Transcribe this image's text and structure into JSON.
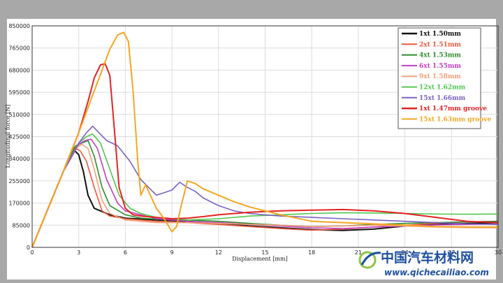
{
  "chart_data": {
    "type": "line",
    "title": "",
    "xlabel": "Displacement [mm]",
    "ylabel": "Longitudinal force [N]",
    "xlim": [
      0,
      30
    ],
    "ylim": [
      0,
      850000
    ],
    "x_ticks": [
      "0",
      "3",
      "6",
      "9",
      "12",
      "15",
      "18",
      "21",
      "24",
      "27",
      "30"
    ],
    "y_ticks": [
      "0",
      "85000",
      "170000",
      "255000",
      "340000",
      "425000",
      "510000",
      "595000",
      "680000",
      "765000",
      "850000"
    ],
    "grid": true,
    "legend_position": "top-right",
    "series": [
      {
        "name": "1xt  1.50mm",
        "color": "#111111",
        "x": [
          0,
          1,
          2,
          2.6,
          3,
          3.3,
          3.6,
          4,
          5,
          6,
          8,
          10,
          12,
          14,
          16,
          18,
          20,
          22,
          24,
          26,
          28,
          30
        ],
        "y": [
          0,
          145000,
          290000,
          380000,
          355000,
          290000,
          200000,
          150000,
          125000,
          112000,
          105000,
          100000,
          92000,
          82000,
          75000,
          68000,
          65000,
          70000,
          82000,
          88000,
          92000,
          95000
        ]
      },
      {
        "name": "2xt  1.51mm",
        "color": "#e8583a",
        "x": [
          0,
          1,
          2,
          2.7,
          3.1,
          3.5,
          4,
          4.5,
          5,
          6,
          8,
          10,
          12,
          14,
          16,
          18,
          20,
          22,
          24,
          26,
          28,
          30
        ],
        "y": [
          0,
          145000,
          290000,
          385000,
          370000,
          330000,
          230000,
          140000,
          120000,
          110000,
          100000,
          95000,
          88000,
          80000,
          72000,
          66000,
          70000,
          78000,
          85000,
          92000,
          98000,
          100000
        ]
      },
      {
        "name": "4xt  1.53mm",
        "color": "#2e8b2e",
        "x": [
          0,
          1,
          2,
          2.8,
          3.2,
          3.6,
          4,
          4.5,
          5,
          6,
          7,
          8,
          10,
          12,
          14,
          16,
          18,
          20,
          22,
          24,
          26,
          28,
          30
        ],
        "y": [
          0,
          145000,
          290000,
          390000,
          400000,
          410000,
          350000,
          230000,
          160000,
          125000,
          112000,
          108000,
          105000,
          100000,
          92000,
          85000,
          80000,
          82000,
          88000,
          92000,
          95000,
          98000,
          100000
        ]
      },
      {
        "name": "6xt  1.55mm",
        "color": "#c23ec2",
        "x": [
          0,
          1,
          2,
          3,
          3.4,
          3.8,
          4.2,
          4.8,
          5.5,
          6,
          8,
          10,
          12,
          14,
          16,
          18,
          20,
          22,
          24,
          26,
          28,
          30
        ],
        "y": [
          0,
          145000,
          290000,
          395000,
          410000,
          415000,
          380000,
          260000,
          170000,
          140000,
          110000,
          100000,
          95000,
          88000,
          82000,
          75000,
          72000,
          78000,
          82000,
          86000,
          88000,
          90000
        ]
      },
      {
        "name": "9xt  1.58mm",
        "color": "#f4a07a",
        "x": [
          0,
          1,
          2,
          2.8,
          3.2,
          3.6,
          4,
          4.5,
          5,
          6,
          8,
          10,
          12,
          14,
          16,
          18,
          20,
          22,
          24,
          26,
          28,
          30
        ],
        "y": [
          0,
          145000,
          290000,
          380000,
          395000,
          380000,
          300000,
          180000,
          130000,
          105000,
          95000,
          95000,
          92000,
          88000,
          85000,
          80000,
          82000,
          85000,
          82000,
          78000,
          76000,
          75000
        ]
      },
      {
        "name": "12xt  1.62mm",
        "color": "#4ec94e",
        "x": [
          0,
          1,
          2,
          3,
          3.5,
          3.9,
          4.4,
          5,
          5.6,
          6.3,
          7,
          8,
          10,
          12,
          14,
          16,
          18,
          20,
          22,
          24,
          26,
          28,
          30
        ],
        "y": [
          0,
          145000,
          290000,
          400000,
          425000,
          435000,
          400000,
          300000,
          200000,
          150000,
          130000,
          115000,
          105000,
          110000,
          120000,
          125000,
          130000,
          133000,
          132000,
          130000,
          128000,
          127000,
          128000
        ]
      },
      {
        "name": "15xt  1.66mm",
        "color": "#7b62c4",
        "x": [
          0,
          1,
          2,
          3,
          3.5,
          3.9,
          4.3,
          4.8,
          5.5,
          6.3,
          7,
          8,
          9,
          9.5,
          10,
          10.5,
          11,
          12,
          13,
          14,
          15,
          16,
          18,
          20,
          22,
          24,
          26,
          28,
          30
        ],
        "y": [
          0,
          145000,
          290000,
          400000,
          440000,
          465000,
          440000,
          410000,
          390000,
          330000,
          260000,
          200000,
          220000,
          250000,
          230000,
          215000,
          190000,
          160000,
          140000,
          130000,
          125000,
          120000,
          115000,
          110000,
          105000,
          100000,
          95000,
          90000,
          88000
        ]
      },
      {
        "name": "1xt  1.47mm groove",
        "color": "#e52222",
        "x": [
          0,
          1,
          2,
          3,
          3.6,
          4,
          4.4,
          4.7,
          5,
          5.3,
          5.6,
          6,
          6.5,
          7,
          8,
          9,
          10,
          11,
          12,
          14,
          16,
          18,
          20,
          22,
          24,
          26,
          28,
          30
        ],
        "y": [
          0,
          145000,
          290000,
          440000,
          560000,
          650000,
          700000,
          705000,
          660000,
          450000,
          230000,
          150000,
          125000,
          120000,
          115000,
          110000,
          112000,
          118000,
          125000,
          135000,
          140000,
          143000,
          145000,
          140000,
          130000,
          115000,
          100000,
          95000
        ]
      },
      {
        "name": "15xt 1.63mm groove",
        "color": "#f5a623",
        "x": [
          0,
          1,
          2,
          3,
          4,
          5,
          5.5,
          5.9,
          6.2,
          6.5,
          6.8,
          7,
          7.3,
          8,
          8.5,
          9,
          9.3,
          9.6,
          10,
          10.5,
          11,
          12,
          13,
          14,
          16,
          18,
          20,
          22,
          24,
          26,
          28,
          30
        ],
        "y": [
          0,
          145000,
          290000,
          440000,
          600000,
          760000,
          815000,
          825000,
          790000,
          600000,
          330000,
          200000,
          240000,
          150000,
          110000,
          60000,
          80000,
          160000,
          255000,
          245000,
          225000,
          200000,
          175000,
          155000,
          125000,
          100000,
          95000,
          90000,
          85000,
          80000,
          78000,
          78000
        ]
      }
    ]
  },
  "watermark": {
    "text": "中国汽车材料网",
    "url": "www.qichecailiao.com",
    "color": "#1e4f9f",
    "accent": "#8cc63f"
  }
}
